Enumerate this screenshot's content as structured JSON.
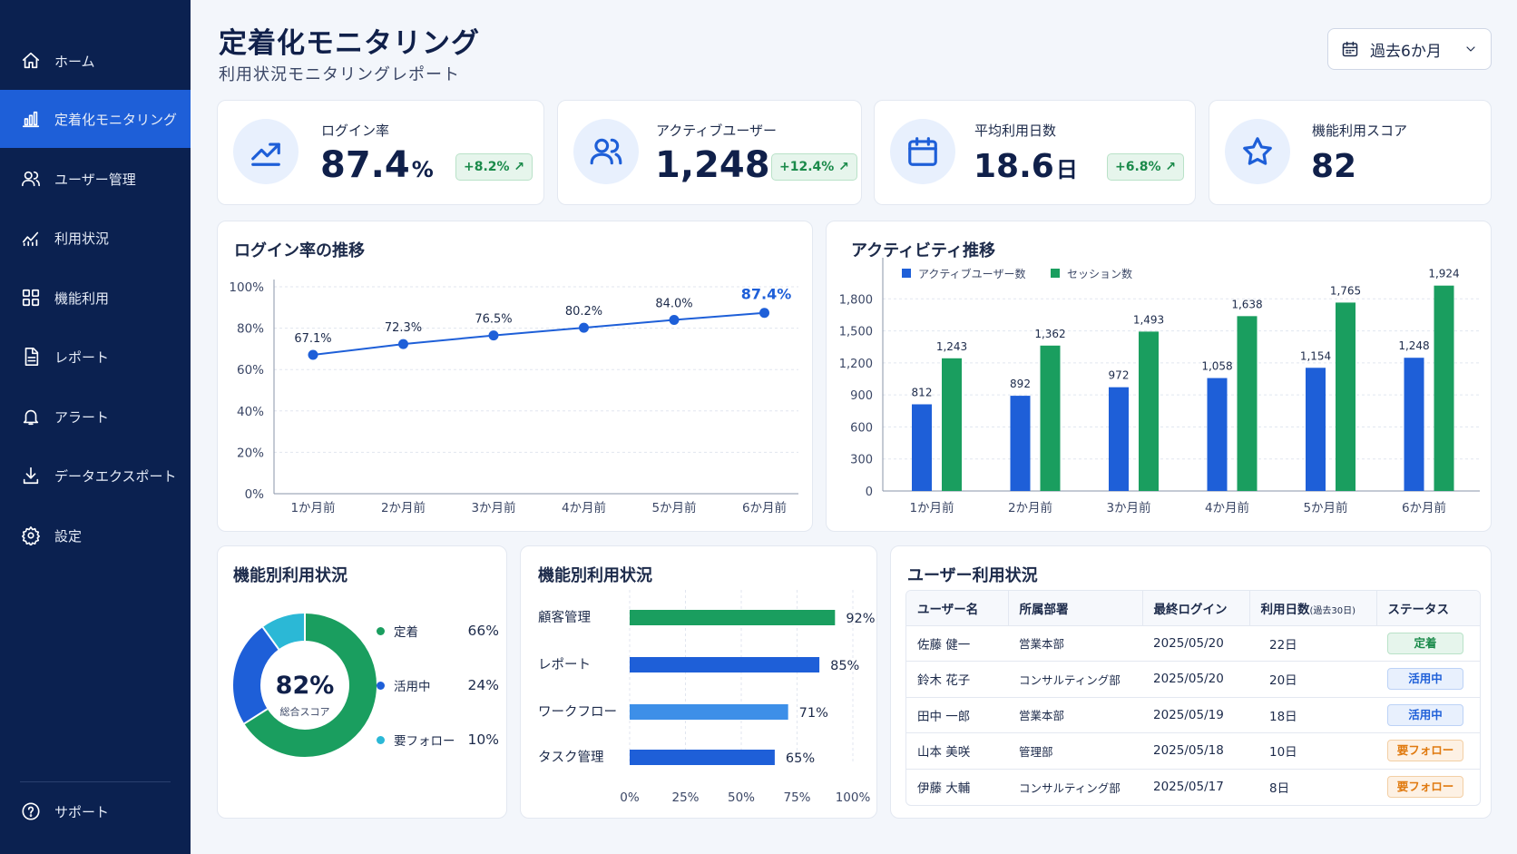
{
  "sidebar": {
    "items": [
      {
        "label": "ホーム",
        "icon": "home-icon"
      },
      {
        "label": "定着化モニタリング",
        "icon": "bar-chart-icon"
      },
      {
        "label": "ユーザー管理",
        "icon": "users-icon"
      },
      {
        "label": "利用状況",
        "icon": "line-chart-icon"
      },
      {
        "label": "機能利用",
        "icon": "grid-icon"
      },
      {
        "label": "レポート",
        "icon": "document-icon"
      },
      {
        "label": "アラート",
        "icon": "bell-icon"
      },
      {
        "label": "データエクスポート",
        "icon": "download-icon"
      },
      {
        "label": "設定",
        "icon": "gear-icon"
      }
    ],
    "active_index": 1,
    "support_label": "サポート"
  },
  "header": {
    "title": "定着化モニタリング",
    "subtitle": "利用状況モニタリングレポート",
    "period": "過去6か月"
  },
  "kpis": [
    {
      "label": "ログイン率",
      "value": "87.4",
      "unit": "%",
      "delta": "+8.2% ↗"
    },
    {
      "label": "アクティブユーザー",
      "value": "1,248",
      "unit": "",
      "delta": "+12.4% ↗"
    },
    {
      "label": "平均利用日数",
      "value": "18.6",
      "unit": "日",
      "delta": "+6.8% ↗"
    },
    {
      "label": "機能利用スコア",
      "value": "82",
      "unit": "",
      "delta": ""
    }
  ],
  "colors": {
    "primary": "#1e5fd8",
    "green": "#1a9e5f",
    "cyan": "#2bb8d6",
    "sidebar": "#0b2150"
  },
  "chart_data": [
    {
      "type": "line",
      "title": "ログイン率の推移",
      "categories": [
        "1か月前",
        "2か月前",
        "3か月前",
        "4か月前",
        "5か月前",
        "6か月前"
      ],
      "values": [
        67.1,
        72.3,
        76.5,
        80.2,
        84.0,
        87.4
      ],
      "data_labels": [
        "67.1%",
        "72.3%",
        "76.5%",
        "80.2%",
        "84.0%",
        "87.4%"
      ],
      "yticks": [
        "0%",
        "20%",
        "40%",
        "60%",
        "80%",
        "100%"
      ],
      "ylim": [
        0,
        100
      ]
    },
    {
      "type": "bar",
      "title": "アクティビティ推移",
      "categories": [
        "1か月前",
        "2か月前",
        "3か月前",
        "4か月前",
        "5か月前",
        "6か月前"
      ],
      "series": [
        {
          "name": "アクティブユーザー数",
          "values": [
            812,
            892,
            972,
            1058,
            1154,
            1248
          ],
          "labels": [
            "812",
            "892",
            "972",
            "1,058",
            "1,154",
            "1,248"
          ],
          "color": "#1e5fd8"
        },
        {
          "name": "セッション数",
          "values": [
            1243,
            1362,
            1493,
            1638,
            1765,
            1924
          ],
          "labels": [
            "1,243",
            "1,362",
            "1,493",
            "1,638",
            "1,765",
            "1,924"
          ],
          "color": "#1a9e5f"
        }
      ],
      "yticks": [
        "0",
        "300",
        "600",
        "900",
        "1,200",
        "1,500",
        "1,800"
      ],
      "ylim": [
        0,
        2100
      ]
    },
    {
      "type": "pie",
      "title": "機能別利用状況",
      "center_value": "82%",
      "center_label": "総合スコア",
      "slices": [
        {
          "name": "定着",
          "value": 66,
          "label": "66%",
          "color": "#1a9e5f"
        },
        {
          "name": "活用中",
          "value": 24,
          "label": "24%",
          "color": "#1e5fd8"
        },
        {
          "name": "要フォロー",
          "value": 10,
          "label": "10%",
          "color": "#2bb8d6"
        }
      ]
    },
    {
      "type": "bar",
      "orientation": "horizontal",
      "title": "機能別利用状況",
      "categories": [
        "顧客管理",
        "レポート",
        "ワークフロー",
        "タスク管理"
      ],
      "values": [
        92,
        85,
        71,
        65
      ],
      "labels": [
        "92%",
        "85%",
        "71%",
        "65%"
      ],
      "colors": [
        "#1a9e5f",
        "#1e5fd8",
        "#3d8fe8",
        "#1e5fd8"
      ],
      "xticks": [
        "0%",
        "25%",
        "50%",
        "75%",
        "100%"
      ],
      "xlim": [
        0,
        100
      ]
    }
  ],
  "user_table": {
    "title": "ユーザー利用状況",
    "headers": [
      "ユーザー名",
      "所属部署",
      "最終ログイン",
      "利用日数",
      "(過去30日)",
      "ステータス"
    ],
    "rows": [
      {
        "name": "佐藤 健一",
        "dept": "営業本部",
        "last_login": "2025/05/20",
        "days": "22日",
        "status": "定着",
        "status_type": "green"
      },
      {
        "name": "鈴木 花子",
        "dept": "コンサルティング部",
        "last_login": "2025/05/20",
        "days": "20日",
        "status": "活用中",
        "status_type": "blue"
      },
      {
        "name": "田中 一郎",
        "dept": "営業本部",
        "last_login": "2025/05/19",
        "days": "18日",
        "status": "活用中",
        "status_type": "blue"
      },
      {
        "name": "山本 美咲",
        "dept": "管理部",
        "last_login": "2025/05/18",
        "days": "10日",
        "status": "要フォロー",
        "status_type": "orange"
      },
      {
        "name": "伊藤 大輔",
        "dept": "コンサルティング部",
        "last_login": "2025/05/17",
        "days": "8日",
        "status": "要フォロー",
        "status_type": "orange"
      }
    ]
  }
}
